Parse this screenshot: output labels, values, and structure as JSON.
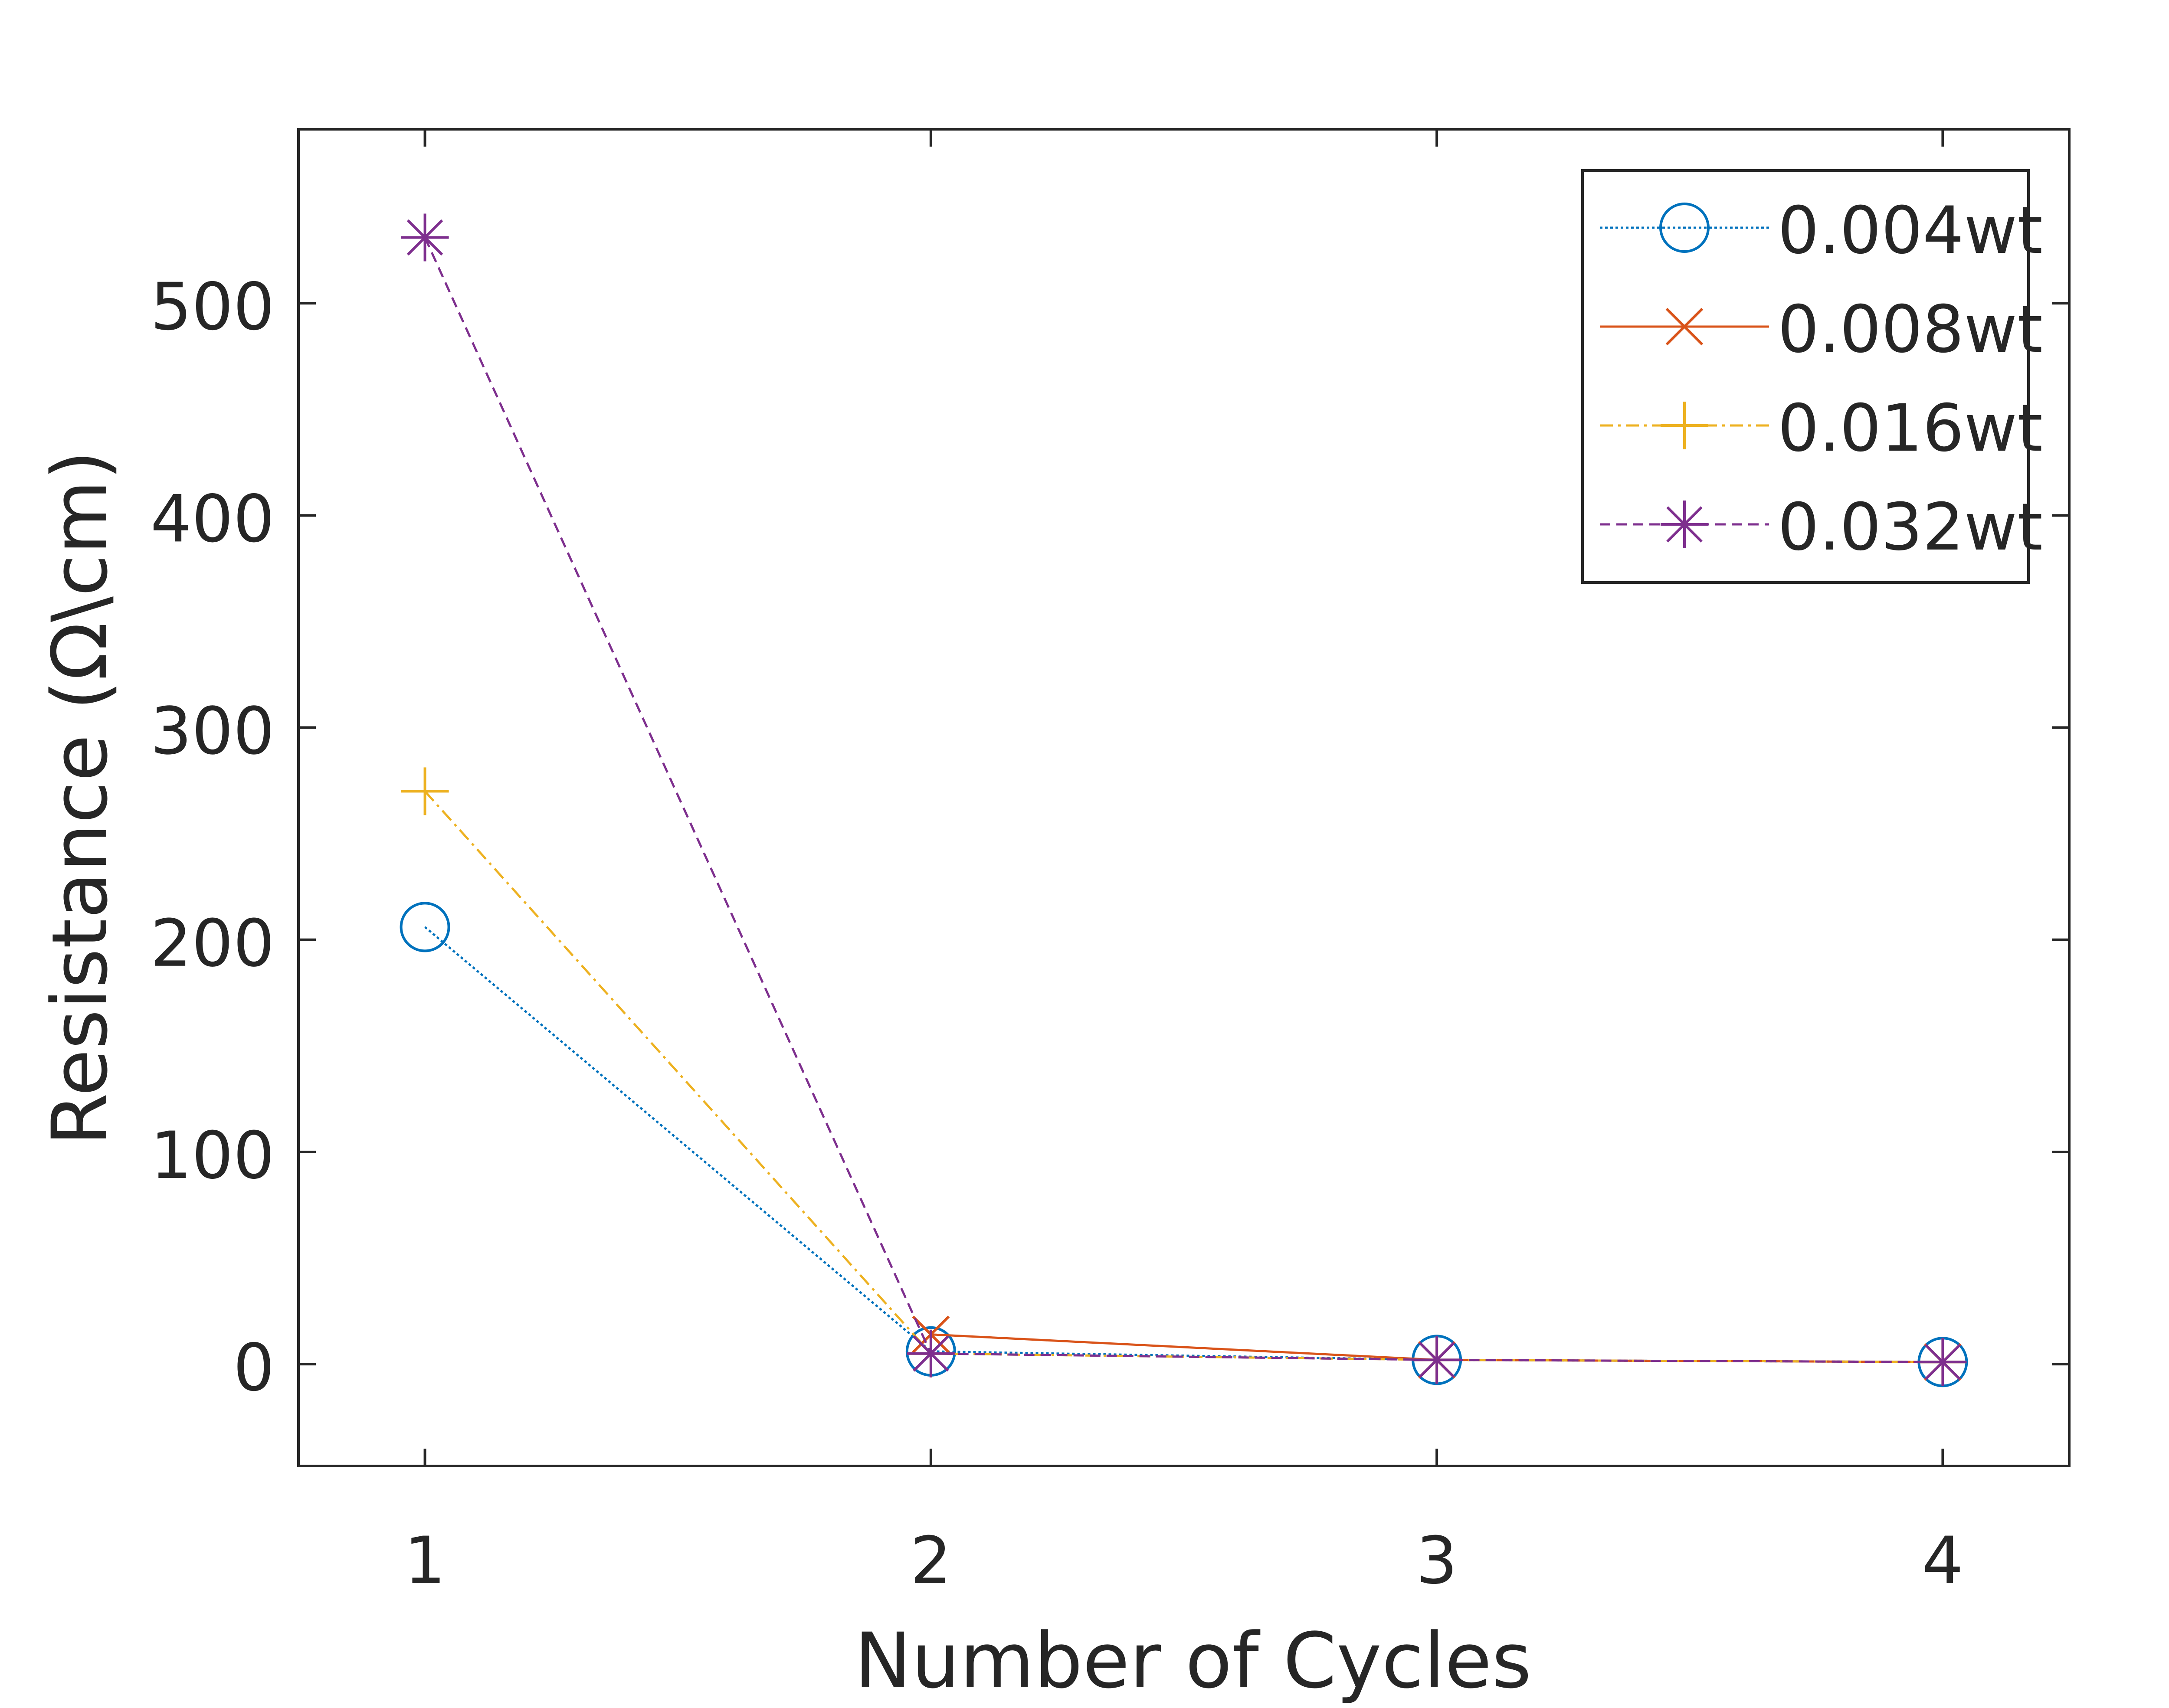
{
  "chart_data": {
    "type": "line",
    "title": "",
    "xlabel": "Number of Cycles",
    "ylabel": "Resistance (Ω\\cm)",
    "x": [
      1,
      2,
      3,
      4
    ],
    "xlim": [
      0.75,
      4.25
    ],
    "ylim": [
      -48,
      582
    ],
    "xticks": [
      "1",
      "2",
      "3",
      "4"
    ],
    "yticks": [
      "0",
      "100",
      "200",
      "300",
      "400",
      "500"
    ],
    "grid": false,
    "legend_position": "top-right",
    "series": [
      {
        "name": "0.004wt",
        "values": [
          206,
          6,
          2,
          1
        ],
        "color": "#0072BD",
        "marker": "circle",
        "line": "dotted"
      },
      {
        "name": "0.008wt",
        "values": [
          null,
          14,
          2,
          1
        ],
        "color": "#D95319",
        "marker": "x",
        "line": "solid"
      },
      {
        "name": "0.016wt",
        "values": [
          270,
          5,
          2,
          1
        ],
        "color": "#EDB120",
        "marker": "plus",
        "line": "dashdot"
      },
      {
        "name": "0.032wt",
        "values": [
          531,
          5,
          2,
          1
        ],
        "color": "#7E2F8E",
        "marker": "asterisk",
        "line": "dashed"
      }
    ]
  }
}
